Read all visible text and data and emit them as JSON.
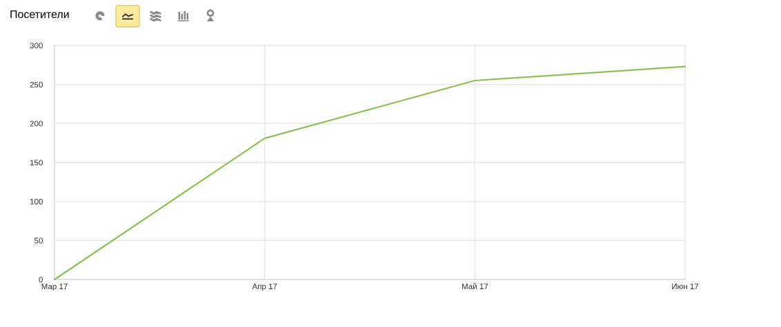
{
  "chart_data": {
    "type": "line",
    "title": "Посетители",
    "categories": [
      "Мар 17",
      "Апр 17",
      "Май 17",
      "Июн 17"
    ],
    "series": [
      {
        "color": "#8cc152",
        "values": [
          0,
          181,
          255,
          273
        ]
      }
    ],
    "ylim": [
      0,
      300
    ],
    "yticks": [
      0,
      50,
      100,
      150,
      200,
      250,
      300
    ],
    "grid": true
  }
}
